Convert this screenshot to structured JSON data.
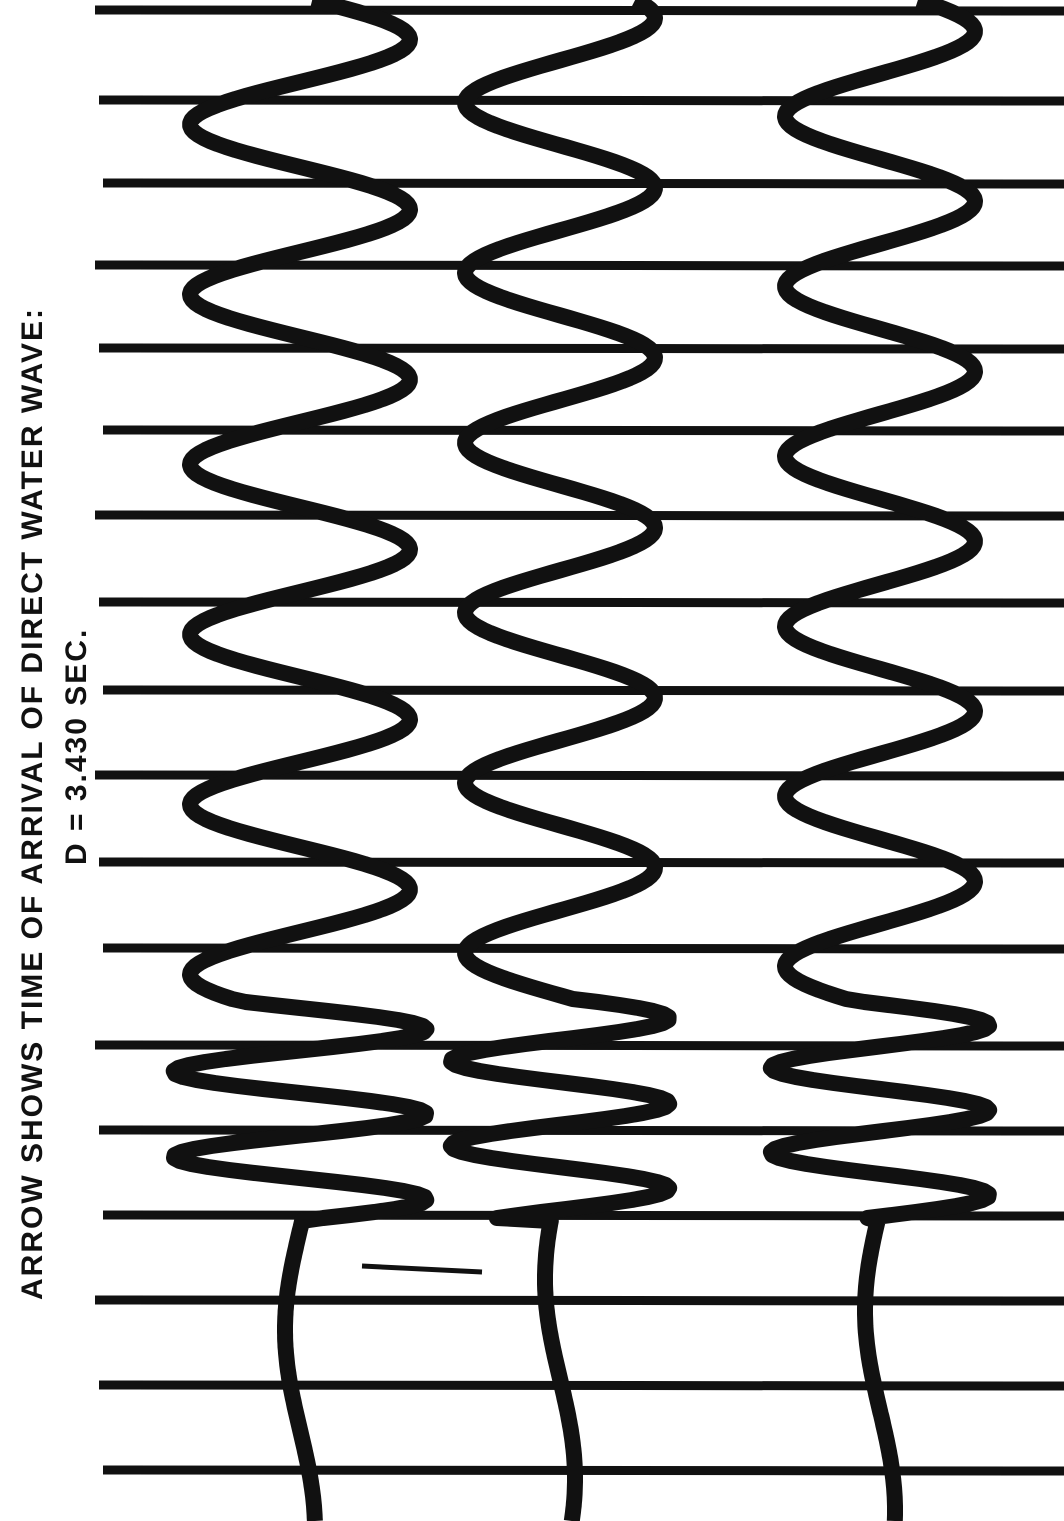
{
  "annotation": {
    "line1": "ARROW SHOWS TIME OF ARRIVAL OF DIRECT WATER WAVE:",
    "line2": "D = 3.430 SEC."
  }
}
